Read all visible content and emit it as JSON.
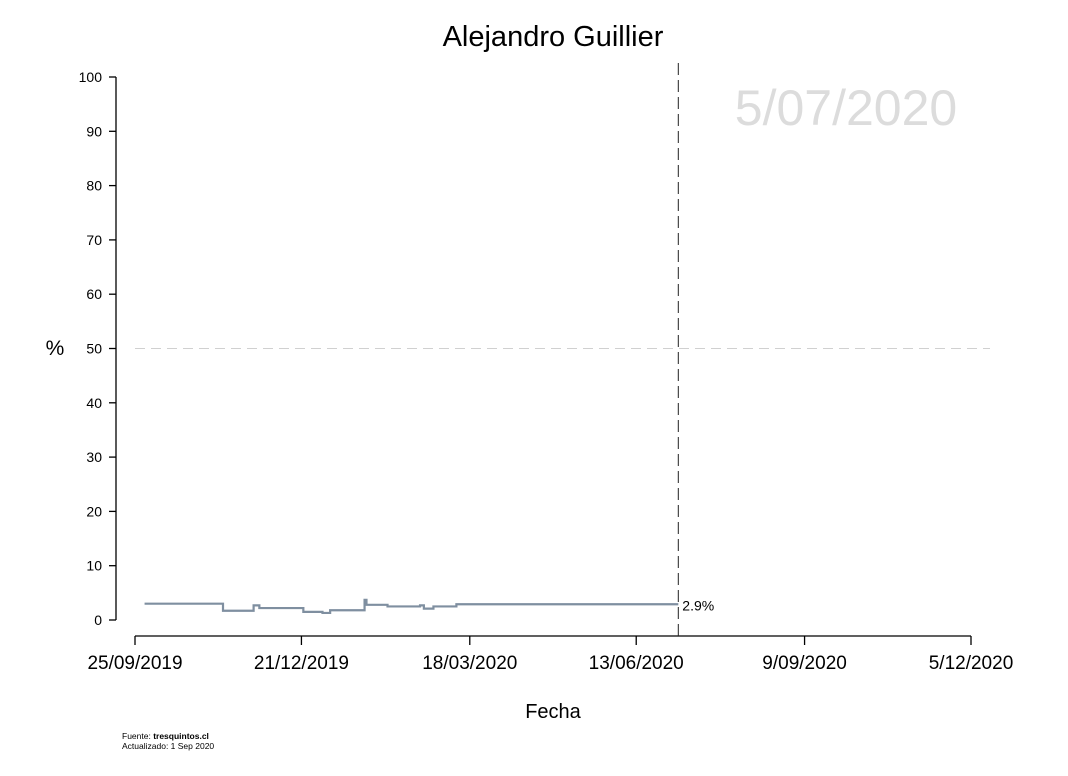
{
  "chart_data": {
    "type": "line",
    "title": "Alejandro Guillier",
    "xlabel": "Fecha",
    "ylabel": "%",
    "ylim": [
      0,
      100
    ],
    "yticks": [
      0,
      10,
      20,
      30,
      40,
      50,
      60,
      70,
      80,
      90,
      100
    ],
    "xlim": [
      "2019-09-25",
      "2020-12-05"
    ],
    "xticks": [
      {
        "date": "2019-09-25",
        "label": "25/09/2019"
      },
      {
        "date": "2019-12-21",
        "label": "21/12/2019"
      },
      {
        "date": "2020-03-18",
        "label": "18/03/2020"
      },
      {
        "date": "2020-06-13",
        "label": "13/06/2020"
      },
      {
        "date": "2020-09-09",
        "label": "9/09/2020"
      },
      {
        "date": "2020-12-05",
        "label": "5/12/2020"
      }
    ],
    "reference_hline": 50,
    "reference_vline": "2020-07-05",
    "watermark": "5/07/2020",
    "end_label": "2.9%",
    "grid": false,
    "line_color": "#7f8fa0",
    "series": [
      {
        "step": true,
        "x": [
          "2019-09-30",
          "2019-11-10",
          "2019-11-26",
          "2019-11-29",
          "2019-12-22",
          "2020-01-01",
          "2020-01-05",
          "2020-01-23",
          "2020-01-24",
          "2020-02-04",
          "2020-02-21",
          "2020-02-23",
          "2020-02-28",
          "2020-03-11",
          "2020-07-05"
        ],
        "y": [
          3.0,
          1.7,
          2.7,
          2.2,
          1.5,
          1.3,
          1.8,
          3.7,
          2.8,
          2.5,
          2.7,
          2.1,
          2.5,
          2.9,
          2.9
        ]
      }
    ]
  },
  "footer": {
    "source_label": "Fuente: ",
    "source_site": "tresquintos.cl",
    "updated": "Actualizado: 1 Sep 2020"
  }
}
